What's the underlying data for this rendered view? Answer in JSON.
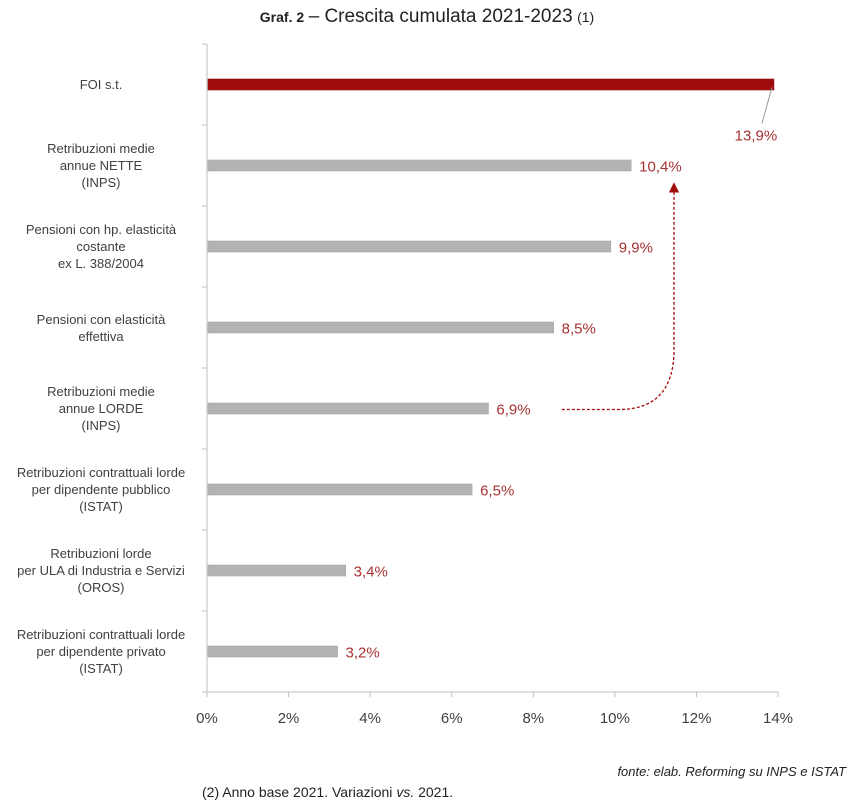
{
  "title": {
    "prefix": "Graf. 2",
    "main": "– Crescita cumulata 2021-2023",
    "note": "(1)"
  },
  "source": "fonte: elab. Reforming su INPS e ISTAT",
  "footnote_parts": [
    "(2) Anno base 2021. Variazioni ",
    "vs.",
    " 2021."
  ],
  "colors": {
    "highlight": "#a00c0c",
    "bar": "#b3b3b3",
    "label": "#a83232",
    "axis": "#bfbfbf"
  },
  "chart_data": {
    "type": "bar",
    "orientation": "horizontal",
    "categories": [
      "FOI s.t.",
      "Retribuzioni medie\nannue NETTE\n(INPS)",
      "Pensioni con hp. elasticità\ncostante\nex L. 388/2004",
      "Pensioni con elasticità\neffettiva",
      "Retribuzioni medie\nannue LORDE\n(INPS)",
      "Retribuzioni contrattuali lorde\nper dipendente pubblico\n(ISTAT)",
      "Retribuzioni lorde\nper ULA di Industria e Servizi\n(OROS)",
      "Retribuzioni contrattuali lorde\nper dipendente privato\n(ISTAT)"
    ],
    "values": [
      13.9,
      10.4,
      9.9,
      8.5,
      6.9,
      6.5,
      3.4,
      3.2
    ],
    "value_labels": [
      "13,9%",
      "10,4%",
      "9,9%",
      "8,5%",
      "6,9%",
      "6,5%",
      "3,4%",
      "3,2%"
    ],
    "highlighted": [
      0
    ],
    "xlim": [
      0,
      14
    ],
    "x_ticks": [
      0,
      2,
      4,
      6,
      8,
      10,
      12,
      14
    ],
    "x_tick_labels": [
      "0%",
      "2%",
      "4%",
      "6%",
      "8%",
      "10%",
      "12%",
      "14%"
    ],
    "annotation_arrow": {
      "from_category": 4,
      "to_category": 1,
      "style": "dashed"
    },
    "grid": false,
    "legend": "none"
  }
}
